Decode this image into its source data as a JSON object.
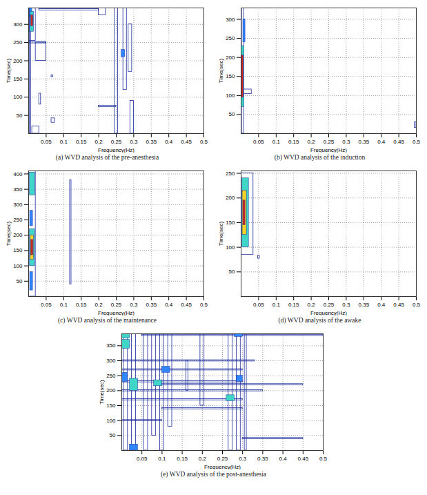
{
  "color_scale": {
    "levels": [
      1,
      2,
      3,
      4,
      5
    ],
    "colors": [
      "#1a2a9c",
      "#2f86ff",
      "#3fd6c8",
      "#f2d22a",
      "#d42a1c"
    ]
  },
  "chart_data": [
    {
      "type": "contour",
      "caption": "(a) WVD analysis of the pre-anesthesia",
      "x_label": "Frequency(Hz)",
      "y_label": "Time(sec)",
      "grid": true,
      "xlim": [
        0,
        0.5
      ],
      "xticks": [
        0.05,
        0.1,
        0.15,
        0.2,
        0.25,
        0.3,
        0.35,
        0.4,
        0.45,
        0.5
      ],
      "ylim": [
        0,
        345
      ],
      "yticks": [
        50,
        100,
        150,
        200,
        250,
        300
      ],
      "cells": [
        {
          "f": [
            0.003,
            0.007
          ],
          "t": [
            0,
            345
          ],
          "level": 1
        },
        {
          "f": [
            0.002,
            0.02
          ],
          "t": [
            255,
            345
          ],
          "level": 1
        },
        {
          "f": [
            0.02,
            0.05
          ],
          "t": [
            200,
            250
          ],
          "level": 1
        },
        {
          "f": [
            0.0,
            0.05
          ],
          "t": [
            248,
            252
          ],
          "level": 1
        },
        {
          "f": [
            0.03,
            0.2
          ],
          "t": [
            338,
            342
          ],
          "level": 1
        },
        {
          "f": [
            0.2,
            0.22
          ],
          "t": [
            325,
            345
          ],
          "level": 1
        },
        {
          "f": [
            0.065,
            0.075
          ],
          "t": [
            30,
            42
          ],
          "level": 1
        },
        {
          "f": [
            0.065,
            0.07
          ],
          "t": [
            155,
            160
          ],
          "level": 1
        },
        {
          "f": [
            0.2,
            0.25
          ],
          "t": [
            73,
            77
          ],
          "level": 1
        },
        {
          "f": [
            0.245,
            0.255
          ],
          "t": [
            0,
            345
          ],
          "level": 1
        },
        {
          "f": [
            0.27,
            0.28
          ],
          "t": [
            120,
            345
          ],
          "level": 1
        },
        {
          "f": [
            0.29,
            0.3
          ],
          "t": [
            0,
            90
          ],
          "level": 1
        },
        {
          "f": [
            0.285,
            0.295
          ],
          "t": [
            170,
            300
          ],
          "level": 1
        },
        {
          "f": [
            0.01,
            0.03
          ],
          "t": [
            0,
            20
          ],
          "level": 1
        },
        {
          "f": [
            0.03,
            0.035
          ],
          "t": [
            80,
            110
          ],
          "level": 1
        },
        {
          "f": [
            0.265,
            0.275
          ],
          "t": [
            210,
            230
          ],
          "level": 2
        },
        {
          "f": [
            0.003,
            0.01
          ],
          "t": [
            320,
            345
          ],
          "level": 2
        },
        {
          "f": [
            0.005,
            0.015
          ],
          "t": [
            280,
            335
          ],
          "level": 3
        },
        {
          "f": [
            0.007,
            0.013
          ],
          "t": [
            295,
            325
          ],
          "level": 5
        }
      ]
    },
    {
      "type": "contour",
      "caption": "(b) WVD analysis of the induction",
      "x_label": "Frequency(Hz)",
      "y_label": "Time(sec)",
      "grid": true,
      "xlim": [
        0,
        0.5
      ],
      "xticks": [
        0.05,
        0.1,
        0.15,
        0.2,
        0.25,
        0.3,
        0.35,
        0.4,
        0.45,
        0.5
      ],
      "ylim": [
        0,
        330
      ],
      "yticks": [
        50,
        100,
        150,
        200,
        250,
        300
      ],
      "cells": [
        {
          "f": [
            0.002,
            0.008
          ],
          "t": [
            0,
            330
          ],
          "level": 1
        },
        {
          "f": [
            0.0,
            0.03
          ],
          "t": [
            104,
            116
          ],
          "level": 1
        },
        {
          "f": [
            0.495,
            0.5
          ],
          "t": [
            15,
            30
          ],
          "level": 1
        },
        {
          "f": [
            0.006,
            0.012
          ],
          "t": [
            240,
            300
          ],
          "level": 2
        },
        {
          "f": [
            0.001,
            0.009
          ],
          "t": [
            70,
            230
          ],
          "level": 3
        },
        {
          "f": [
            0.002,
            0.007
          ],
          "t": [
            95,
            205
          ],
          "level": 5
        }
      ]
    },
    {
      "type": "contour",
      "caption": "(c) WVD analysis of the maintenance",
      "x_label": "Frequency(Hz)",
      "y_label": "Time(sec)",
      "grid": true,
      "xlim": [
        0,
        0.5
      ],
      "xticks": [
        0.05,
        0.1,
        0.15,
        0.2,
        0.25,
        0.3,
        0.35,
        0.4,
        0.45,
        0.5
      ],
      "ylim": [
        0,
        410
      ],
      "yticks": [
        50,
        100,
        150,
        200,
        250,
        300,
        350,
        400
      ],
      "cells": [
        {
          "f": [
            0.0,
            0.02
          ],
          "t": [
            0,
            410
          ],
          "level": 1
        },
        {
          "f": [
            0.118,
            0.122
          ],
          "t": [
            40,
            380
          ],
          "level": 1
        },
        {
          "f": [
            0.004,
            0.012
          ],
          "t": [
            230,
            280
          ],
          "level": 2
        },
        {
          "f": [
            0.004,
            0.012
          ],
          "t": [
            20,
            80
          ],
          "level": 2
        },
        {
          "f": [
            0.003,
            0.018
          ],
          "t": [
            330,
            405
          ],
          "level": 3
        },
        {
          "f": [
            0.003,
            0.018
          ],
          "t": [
            100,
            220
          ],
          "level": 3
        },
        {
          "f": [
            0.005,
            0.015
          ],
          "t": [
            120,
            200
          ],
          "level": 4
        },
        {
          "f": [
            0.007,
            0.013
          ],
          "t": [
            135,
            185
          ],
          "level": 5
        }
      ]
    },
    {
      "type": "contour",
      "caption": "(d) WVD analysis of the awake",
      "x_label": "Frequency(Hz)",
      "y_label": "Time(sec)",
      "grid": true,
      "xlim": [
        0,
        0.5
      ],
      "xticks": [
        0.05,
        0.1,
        0.15,
        0.2,
        0.25,
        0.3,
        0.35,
        0.4,
        0.45,
        0.5
      ],
      "ylim": [
        0,
        255
      ],
      "yticks": [
        50,
        100,
        150,
        200,
        250
      ],
      "cells": [
        {
          "f": [
            0.0,
            0.035
          ],
          "t": [
            85,
            250
          ],
          "level": 1
        },
        {
          "f": [
            0.048,
            0.053
          ],
          "t": [
            77,
            83
          ],
          "level": 1
        },
        {
          "f": [
            0.003,
            0.022
          ],
          "t": [
            100,
            240
          ],
          "level": 3
        },
        {
          "f": [
            0.004,
            0.016
          ],
          "t": [
            125,
            215
          ],
          "level": 4
        },
        {
          "f": [
            0.006,
            0.012
          ],
          "t": [
            145,
            195
          ],
          "level": 5
        }
      ]
    },
    {
      "type": "contour",
      "caption": "(e) WVD analysis of the post-anesthesia",
      "x_label": "Frequency(Hz)",
      "y_label": "Time(sec)",
      "grid": true,
      "xlim": [
        0,
        0.5
      ],
      "xticks": [
        0.05,
        0.1,
        0.15,
        0.2,
        0.25,
        0.3,
        0.35,
        0.4,
        0.45,
        0.5
      ],
      "ylim": [
        0,
        390
      ],
      "yticks": [
        50,
        100,
        150,
        200,
        250,
        300,
        350
      ],
      "cells": [
        {
          "f": [
            0.005,
            0.015
          ],
          "t": [
            0,
            390
          ],
          "level": 1
        },
        {
          "f": [
            0.025,
            0.035
          ],
          "t": [
            0,
            390
          ],
          "level": 1
        },
        {
          "f": [
            0.055,
            0.065
          ],
          "t": [
            0,
            390
          ],
          "level": 1
        },
        {
          "f": [
            0.075,
            0.085
          ],
          "t": [
            50,
            390
          ],
          "level": 1
        },
        {
          "f": [
            0.095,
            0.105
          ],
          "t": [
            0,
            390
          ],
          "level": 1
        },
        {
          "f": [
            0.115,
            0.125
          ],
          "t": [
            80,
            390
          ],
          "level": 1
        },
        {
          "f": [
            0.195,
            0.205
          ],
          "t": [
            150,
            390
          ],
          "level": 1
        },
        {
          "f": [
            0.265,
            0.275
          ],
          "t": [
            0,
            390
          ],
          "level": 1
        },
        {
          "f": [
            0.285,
            0.295
          ],
          "t": [
            0,
            390
          ],
          "level": 1
        },
        {
          "f": [
            0.305,
            0.31
          ],
          "t": [
            0,
            390
          ],
          "level": 1
        },
        {
          "f": [
            0.16,
            0.165
          ],
          "t": [
            200,
            300
          ],
          "level": 1
        },
        {
          "f": [
            0.05,
            0.5
          ],
          "t": [
            383,
            387
          ],
          "level": 1
        },
        {
          "f": [
            0.0,
            0.33
          ],
          "t": [
            298,
            302
          ],
          "level": 1
        },
        {
          "f": [
            0.0,
            0.3
          ],
          "t": [
            268,
            272
          ],
          "level": 1
        },
        {
          "f": [
            0.0,
            0.3
          ],
          "t": [
            228,
            232
          ],
          "level": 1
        },
        {
          "f": [
            0.1,
            0.45
          ],
          "t": [
            218,
            222
          ],
          "level": 1
        },
        {
          "f": [
            0.0,
            0.35
          ],
          "t": [
            198,
            202
          ],
          "level": 1
        },
        {
          "f": [
            0.0,
            0.3
          ],
          "t": [
            168,
            172
          ],
          "level": 1
        },
        {
          "f": [
            0.1,
            0.3
          ],
          "t": [
            138,
            142
          ],
          "level": 1
        },
        {
          "f": [
            0.3,
            0.45
          ],
          "t": [
            38,
            42
          ],
          "level": 1
        },
        {
          "f": [
            0.0,
            0.1
          ],
          "t": [
            98,
            102
          ],
          "level": 1
        },
        {
          "f": [
            0.285,
            0.3
          ],
          "t": [
            230,
            250
          ],
          "level": 2
        },
        {
          "f": [
            0.0,
            0.015
          ],
          "t": [
            230,
            260
          ],
          "level": 2
        },
        {
          "f": [
            0.1,
            0.12
          ],
          "t": [
            260,
            280
          ],
          "level": 2
        },
        {
          "f": [
            0.02,
            0.04
          ],
          "t": [
            0,
            20
          ],
          "level": 2
        },
        {
          "f": [
            0.28,
            0.3
          ],
          "t": [
            380,
            390
          ],
          "level": 2
        },
        {
          "f": [
            0.0,
            0.02
          ],
          "t": [
            340,
            370
          ],
          "level": 3
        },
        {
          "f": [
            0.02,
            0.04
          ],
          "t": [
            200,
            240
          ],
          "level": 3
        },
        {
          "f": [
            0.08,
            0.1
          ],
          "t": [
            215,
            235
          ],
          "level": 3
        },
        {
          "f": [
            0.26,
            0.28
          ],
          "t": [
            165,
            185
          ],
          "level": 3
        },
        {
          "f": [
            0.0,
            0.02
          ],
          "t": [
            375,
            390
          ],
          "level": 3
        }
      ]
    }
  ]
}
